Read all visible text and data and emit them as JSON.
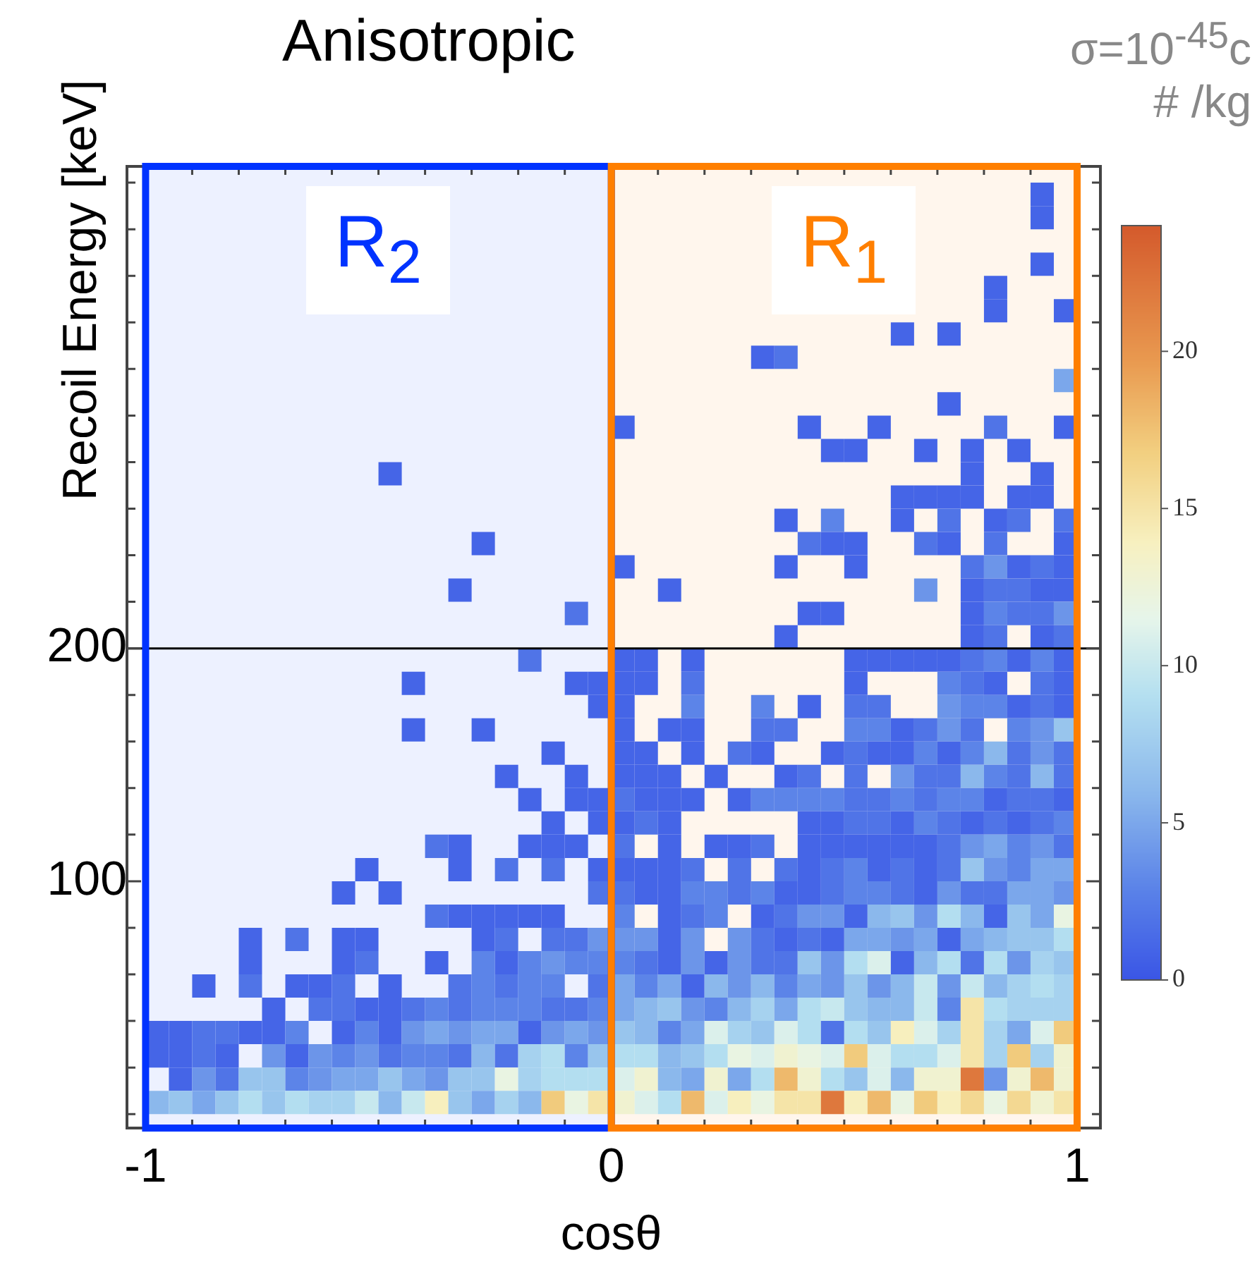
{
  "chart_data": {
    "type": "heatmap",
    "title": "Anisotropic",
    "xlabel": "cosθ",
    "ylabel": "Recoil Energy [keV]",
    "annotations": [
      "σ=10$^{-45}$c",
      "# /kg"
    ],
    "x": [
      -0.975,
      -0.925,
      -0.875,
      -0.825,
      -0.775,
      -0.725,
      -0.675,
      -0.625,
      -0.575,
      -0.525,
      -0.475,
      -0.425,
      -0.375,
      -0.325,
      -0.275,
      -0.225,
      -0.175,
      -0.125,
      -0.075,
      -0.025,
      0.025,
      0.075,
      0.125,
      0.175,
      0.225,
      0.275,
      0.325,
      0.375,
      0.425,
      0.475,
      0.525,
      0.575,
      0.625,
      0.675,
      0.725,
      0.775,
      0.825,
      0.875,
      0.925,
      0.975
    ],
    "y": [
      395,
      385,
      365,
      355,
      345,
      335,
      325,
      315,
      305,
      295,
      285,
      275,
      265,
      255,
      245,
      235,
      225,
      215,
      205,
      195,
      185,
      175,
      165,
      155,
      145,
      135,
      125,
      115,
      105,
      95,
      85,
      75,
      65,
      55,
      45,
      35,
      25,
      15,
      5
    ],
    "cells": [
      [
        null,
        null,
        null,
        null,
        null,
        null,
        null,
        null,
        null,
        null,
        null,
        null,
        null,
        null,
        null,
        null,
        null,
        null,
        null,
        null,
        null,
        null,
        null,
        null,
        null,
        null,
        null,
        null,
        null,
        null,
        null,
        null,
        null,
        null,
        null,
        null,
        null,
        null,
        1,
        null
      ],
      [
        null,
        null,
        null,
        null,
        null,
        null,
        null,
        null,
        null,
        null,
        null,
        null,
        null,
        null,
        null,
        null,
        null,
        null,
        null,
        null,
        null,
        null,
        null,
        null,
        null,
        null,
        null,
        null,
        null,
        null,
        null,
        null,
        null,
        null,
        null,
        null,
        null,
        null,
        1,
        null
      ],
      [
        null,
        null,
        null,
        null,
        null,
        null,
        null,
        null,
        null,
        null,
        null,
        null,
        null,
        null,
        null,
        null,
        null,
        null,
        null,
        null,
        null,
        null,
        null,
        null,
        null,
        null,
        null,
        null,
        null,
        null,
        null,
        null,
        null,
        null,
        null,
        null,
        null,
        null,
        1,
        null
      ],
      [
        null,
        null,
        null,
        null,
        null,
        null,
        null,
        null,
        null,
        null,
        null,
        null,
        null,
        null,
        null,
        null,
        null,
        null,
        null,
        null,
        null,
        null,
        null,
        null,
        null,
        null,
        null,
        null,
        null,
        null,
        null,
        null,
        null,
        null,
        null,
        null,
        1,
        null,
        null,
        null
      ],
      [
        null,
        null,
        null,
        null,
        null,
        null,
        null,
        null,
        null,
        null,
        null,
        null,
        null,
        null,
        null,
        null,
        null,
        null,
        null,
        null,
        null,
        null,
        null,
        null,
        null,
        null,
        null,
        null,
        null,
        null,
        null,
        null,
        null,
        null,
        null,
        null,
        1,
        null,
        null,
        1
      ],
      [
        null,
        null,
        null,
        null,
        null,
        null,
        null,
        null,
        null,
        null,
        null,
        null,
        null,
        null,
        null,
        null,
        null,
        null,
        null,
        null,
        null,
        null,
        null,
        null,
        null,
        null,
        null,
        null,
        null,
        null,
        null,
        null,
        1,
        null,
        1,
        null,
        null,
        null,
        null,
        null
      ],
      [
        null,
        null,
        null,
        null,
        null,
        null,
        null,
        null,
        null,
        null,
        null,
        null,
        null,
        null,
        null,
        null,
        null,
        null,
        null,
        null,
        null,
        null,
        null,
        null,
        null,
        null,
        1,
        2,
        null,
        null,
        null,
        null,
        null,
        null,
        null,
        null,
        null,
        null,
        null,
        null
      ],
      [
        null,
        null,
        null,
        null,
        null,
        null,
        null,
        null,
        null,
        null,
        null,
        null,
        null,
        null,
        null,
        null,
        null,
        null,
        null,
        null,
        null,
        null,
        null,
        null,
        null,
        null,
        null,
        null,
        null,
        null,
        null,
        null,
        null,
        null,
        null,
        null,
        null,
        null,
        null,
        5
      ],
      [
        null,
        null,
        null,
        null,
        null,
        null,
        null,
        null,
        null,
        null,
        null,
        null,
        null,
        null,
        null,
        null,
        null,
        null,
        null,
        null,
        null,
        null,
        null,
        null,
        null,
        null,
        null,
        null,
        null,
        null,
        null,
        null,
        null,
        null,
        1,
        null,
        null,
        null,
        null,
        null
      ],
      [
        null,
        null,
        null,
        null,
        null,
        null,
        null,
        null,
        null,
        null,
        null,
        null,
        null,
        null,
        null,
        null,
        null,
        null,
        null,
        null,
        1,
        null,
        null,
        null,
        null,
        null,
        null,
        null,
        1,
        null,
        null,
        1,
        null,
        null,
        null,
        null,
        2,
        null,
        null,
        1
      ],
      [
        null,
        null,
        null,
        null,
        null,
        null,
        null,
        null,
        null,
        null,
        null,
        null,
        null,
        null,
        null,
        null,
        null,
        null,
        null,
        null,
        null,
        null,
        null,
        null,
        null,
        null,
        null,
        null,
        null,
        1,
        1,
        null,
        null,
        1,
        null,
        1,
        null,
        1,
        null,
        null
      ],
      [
        null,
        null,
        null,
        null,
        null,
        null,
        null,
        null,
        null,
        null,
        1,
        null,
        null,
        null,
        null,
        null,
        null,
        null,
        null,
        null,
        null,
        null,
        null,
        null,
        null,
        null,
        null,
        null,
        null,
        null,
        null,
        null,
        null,
        null,
        null,
        1,
        null,
        null,
        1,
        null
      ],
      [
        null,
        null,
        null,
        null,
        null,
        null,
        null,
        null,
        null,
        null,
        null,
        null,
        null,
        null,
        null,
        null,
        null,
        null,
        null,
        null,
        null,
        null,
        null,
        null,
        null,
        null,
        null,
        null,
        null,
        null,
        null,
        null,
        1,
        1,
        1,
        1,
        null,
        1,
        1,
        null
      ],
      [
        null,
        null,
        null,
        null,
        null,
        null,
        null,
        null,
        null,
        null,
        null,
        null,
        null,
        null,
        null,
        null,
        null,
        null,
        null,
        null,
        null,
        null,
        null,
        null,
        null,
        null,
        null,
        1,
        null,
        3,
        null,
        null,
        1,
        null,
        2,
        null,
        1,
        2,
        null,
        2
      ],
      [
        null,
        null,
        null,
        null,
        null,
        null,
        null,
        null,
        null,
        null,
        null,
        null,
        null,
        null,
        1,
        null,
        null,
        null,
        null,
        null,
        null,
        null,
        null,
        null,
        null,
        null,
        null,
        null,
        2,
        1,
        1,
        null,
        null,
        2,
        1,
        null,
        2,
        null,
        null,
        1
      ],
      [
        null,
        null,
        null,
        null,
        null,
        null,
        null,
        null,
        null,
        null,
        null,
        null,
        null,
        null,
        null,
        null,
        null,
        null,
        null,
        null,
        1,
        null,
        null,
        null,
        null,
        null,
        null,
        1,
        null,
        null,
        1,
        null,
        null,
        null,
        null,
        2,
        4,
        1,
        2,
        1
      ],
      [
        null,
        null,
        null,
        null,
        null,
        null,
        null,
        null,
        null,
        null,
        null,
        null,
        null,
        1,
        null,
        null,
        null,
        null,
        null,
        null,
        null,
        null,
        1,
        null,
        null,
        null,
        null,
        null,
        null,
        null,
        null,
        null,
        null,
        4,
        null,
        1,
        2,
        2,
        1,
        1
      ],
      [
        null,
        null,
        null,
        null,
        null,
        null,
        null,
        null,
        null,
        null,
        null,
        null,
        null,
        null,
        null,
        null,
        null,
        null,
        2,
        null,
        null,
        null,
        null,
        null,
        null,
        null,
        null,
        null,
        1,
        1,
        null,
        null,
        null,
        null,
        null,
        1,
        3,
        2,
        2,
        4
      ],
      [
        null,
        null,
        null,
        null,
        null,
        null,
        null,
        null,
        null,
        null,
        null,
        null,
        null,
        null,
        null,
        null,
        null,
        null,
        null,
        null,
        null,
        null,
        null,
        null,
        null,
        null,
        null,
        1,
        null,
        null,
        null,
        null,
        null,
        null,
        null,
        1,
        2,
        null,
        1,
        2
      ],
      [
        null,
        null,
        null,
        null,
        null,
        null,
        null,
        null,
        null,
        null,
        null,
        null,
        null,
        null,
        null,
        null,
        2,
        null,
        null,
        null,
        1,
        1,
        null,
        1,
        null,
        null,
        null,
        null,
        null,
        null,
        1,
        1,
        1,
        1,
        1,
        2,
        3,
        1,
        3,
        1
      ],
      [
        null,
        null,
        null,
        null,
        null,
        null,
        null,
        null,
        null,
        null,
        null,
        1,
        null,
        null,
        null,
        null,
        null,
        null,
        1,
        1,
        1,
        1,
        null,
        2,
        null,
        null,
        null,
        null,
        null,
        null,
        1,
        null,
        null,
        null,
        3,
        2,
        1,
        null,
        2,
        1
      ],
      [
        null,
        null,
        null,
        null,
        null,
        null,
        null,
        null,
        null,
        null,
        null,
        null,
        null,
        null,
        null,
        null,
        null,
        null,
        null,
        1,
        1,
        null,
        null,
        3,
        null,
        null,
        3,
        null,
        1,
        null,
        2,
        2,
        null,
        null,
        4,
        3,
        3,
        1,
        2,
        1
      ],
      [
        null,
        null,
        null,
        null,
        null,
        null,
        null,
        null,
        null,
        null,
        null,
        1,
        null,
        null,
        1,
        null,
        null,
        null,
        null,
        null,
        1,
        null,
        1,
        1,
        null,
        null,
        2,
        2,
        null,
        null,
        3,
        3,
        1,
        2,
        4,
        2,
        null,
        3,
        4,
        7
      ],
      [
        null,
        null,
        null,
        null,
        null,
        null,
        null,
        null,
        null,
        null,
        null,
        null,
        null,
        null,
        null,
        null,
        null,
        1,
        null,
        null,
        1,
        1,
        null,
        1,
        null,
        2,
        1,
        null,
        null,
        1,
        2,
        1,
        1,
        3,
        1,
        3,
        6,
        2,
        4,
        2
      ],
      [
        null,
        null,
        null,
        null,
        null,
        null,
        null,
        null,
        null,
        null,
        null,
        null,
        null,
        null,
        null,
        1,
        null,
        null,
        1,
        null,
        1,
        1,
        1,
        null,
        1,
        null,
        null,
        1,
        2,
        null,
        2,
        null,
        4,
        2,
        2,
        6,
        3,
        2,
        6,
        2
      ],
      [
        null,
        null,
        null,
        null,
        null,
        null,
        null,
        null,
        null,
        null,
        null,
        null,
        null,
        null,
        null,
        null,
        1,
        null,
        1,
        1,
        2,
        1,
        1,
        1,
        null,
        1,
        3,
        3,
        3,
        3,
        2,
        2,
        3,
        2,
        3,
        3,
        1,
        2,
        2,
        1
      ],
      [
        null,
        null,
        null,
        null,
        null,
        null,
        null,
        null,
        null,
        null,
        null,
        null,
        null,
        null,
        null,
        null,
        null,
        1,
        null,
        1,
        1,
        2,
        1,
        null,
        null,
        null,
        null,
        null,
        1,
        1,
        2,
        2,
        1,
        3,
        2,
        1,
        2,
        1,
        2,
        3
      ],
      [
        null,
        null,
        null,
        null,
        null,
        null,
        null,
        null,
        null,
        null,
        null,
        null,
        2,
        1,
        null,
        null,
        1,
        1,
        1,
        null,
        2,
        null,
        1,
        null,
        1,
        1,
        2,
        null,
        1,
        1,
        1,
        1,
        1,
        1,
        2,
        4,
        5,
        3,
        4,
        2
      ],
      [
        null,
        null,
        null,
        null,
        null,
        null,
        null,
        null,
        null,
        1,
        null,
        null,
        null,
        1,
        null,
        2,
        null,
        2,
        null,
        1,
        1,
        1,
        1,
        2,
        null,
        2,
        null,
        2,
        1,
        2,
        3,
        1,
        2,
        1,
        2,
        7,
        4,
        3,
        5,
        5
      ],
      [
        null,
        null,
        null,
        null,
        null,
        null,
        null,
        null,
        1,
        null,
        1,
        null,
        null,
        null,
        null,
        null,
        null,
        null,
        null,
        2,
        2,
        1,
        1,
        3,
        3,
        2,
        3,
        1,
        1,
        2,
        3,
        3,
        2,
        1,
        4,
        2,
        2,
        5,
        5,
        4
      ],
      [
        null,
        null,
        null,
        null,
        null,
        null,
        null,
        null,
        null,
        null,
        null,
        null,
        2,
        1,
        1,
        1,
        1,
        1,
        null,
        null,
        3,
        null,
        1,
        2,
        3,
        null,
        1,
        2,
        4,
        4,
        1,
        6,
        7,
        4,
        9,
        6,
        1,
        7,
        5,
        12
      ],
      [
        null,
        null,
        null,
        null,
        1,
        null,
        2,
        null,
        1,
        1,
        null,
        null,
        null,
        null,
        1,
        2,
        null,
        2,
        2,
        4,
        4,
        4,
        1,
        4,
        null,
        4,
        2,
        1,
        2,
        1,
        5,
        5,
        4,
        5,
        1,
        5,
        6,
        7,
        7,
        9
      ],
      [
        null,
        null,
        null,
        null,
        1,
        null,
        null,
        null,
        1,
        2,
        null,
        null,
        1,
        null,
        3,
        1,
        3,
        4,
        3,
        3,
        3,
        2,
        1,
        4,
        1,
        4,
        2,
        2,
        7,
        4,
        9,
        11,
        1,
        6,
        9,
        2,
        9,
        4,
        8,
        7
      ],
      [
        null,
        null,
        1,
        null,
        2,
        null,
        1,
        1,
        2,
        null,
        1,
        null,
        null,
        2,
        3,
        2,
        3,
        3,
        null,
        2,
        5,
        3,
        5,
        1,
        6,
        4,
        6,
        3,
        5,
        4,
        7,
        4,
        6,
        10,
        4,
        10,
        6,
        8,
        9,
        8
      ],
      [
        null,
        null,
        null,
        null,
        null,
        1,
        null,
        2,
        2,
        1,
        1,
        2,
        3,
        2,
        3,
        3,
        3,
        2,
        2,
        3,
        5,
        6,
        7,
        4,
        3,
        6,
        8,
        5,
        9,
        10,
        7,
        6,
        6,
        10,
        3,
        15,
        9,
        8,
        8,
        8
      ],
      [
        1,
        1,
        2,
        2,
        1,
        1,
        3,
        null,
        1,
        3,
        1,
        4,
        5,
        4,
        5,
        5,
        1,
        4,
        5,
        4,
        7,
        6,
        3,
        5,
        11,
        8,
        7,
        11,
        9,
        2,
        9,
        7,
        14,
        11,
        8,
        15,
        8,
        5,
        11,
        17
      ],
      [
        1,
        1,
        2,
        1,
        null,
        4,
        1,
        4,
        3,
        4,
        2,
        3,
        3,
        2,
        6,
        2,
        8,
        9,
        3,
        7,
        9,
        9,
        6,
        7,
        9,
        12,
        11,
        13,
        12,
        11,
        17,
        11,
        9,
        9,
        11,
        15,
        8,
        17,
        8,
        13
      ],
      [
        null,
        1,
        4,
        2,
        7,
        7,
        3,
        4,
        5,
        5,
        7,
        5,
        4,
        7,
        7,
        12,
        8,
        9,
        9,
        9,
        11,
        13,
        6,
        5,
        13,
        5,
        9,
        18,
        13,
        9,
        7,
        11,
        6,
        13,
        13,
        22,
        4,
        13,
        18,
        13
      ],
      [
        6,
        7,
        5,
        7,
        9,
        7,
        9,
        8,
        8,
        10,
        6,
        10,
        14,
        7,
        5,
        8,
        6,
        17,
        12,
        15,
        13,
        11,
        9,
        18,
        11,
        14,
        12,
        15,
        15,
        22,
        14,
        18,
        12,
        17,
        14,
        16,
        12,
        16,
        13,
        15
      ]
    ],
    "xlim": [
      -1.04,
      1.05
    ],
    "xticks": [
      -1,
      {
        "value": -0.9,
        "label": null
      },
      {
        "value": -0.8,
        "label": null
      },
      {
        "value": -0.7,
        "label": null
      },
      {
        "value": -0.6,
        "label": null
      },
      {
        "value": -0.5,
        "label": null
      },
      {
        "value": -0.4,
        "label": null
      },
      {
        "value": -0.3,
        "label": null
      },
      {
        "value": -0.2,
        "label": null
      },
      {
        "value": -0.1,
        "label": null
      },
      0,
      {
        "value": 0.1,
        "label": null
      },
      {
        "value": 0.2,
        "label": null
      },
      {
        "value": 0.3,
        "label": null
      },
      {
        "value": 0.4,
        "label": null
      },
      {
        "value": 0.5,
        "label": null
      },
      {
        "value": 0.6,
        "label": null
      },
      {
        "value": 0.7,
        "label": null
      },
      {
        "value": 0.8,
        "label": null
      },
      {
        "value": 0.9,
        "label": null
      },
      1
    ],
    "ylim": [
      -6,
      407
    ],
    "yticks": [
      {
        "value": 0,
        "label": null
      },
      {
        "value": 20,
        "label": null
      },
      {
        "value": 40,
        "label": null
      },
      {
        "value": 60,
        "label": null
      },
      {
        "value": 80,
        "label": null
      },
      100,
      {
        "value": 120,
        "label": null
      },
      {
        "value": 140,
        "label": null
      },
      {
        "value": 160,
        "label": null
      },
      {
        "value": 180,
        "label": null
      },
      200,
      {
        "value": 220,
        "label": null
      },
      {
        "value": 240,
        "label": null
      },
      {
        "value": 260,
        "label": null
      },
      {
        "value": 280,
        "label": null
      },
      {
        "value": 300,
        "label": null
      },
      {
        "value": 320,
        "label": null
      },
      {
        "value": 340,
        "label": null
      },
      {
        "value": 360,
        "label": null
      },
      {
        "value": 380,
        "label": null
      },
      {
        "value": 400,
        "label": null
      }
    ],
    "clim": [
      0,
      24
    ],
    "cticks": [
      0,
      5,
      10,
      15,
      20
    ],
    "ref_lines": [
      {
        "axis": "y",
        "value": 200,
        "color": "#000000"
      }
    ],
    "bands": [
      {
        "axis": "x",
        "from": -1,
        "to": 0,
        "label": "R$_{2}$",
        "color": "#0033ff"
      },
      {
        "axis": "x",
        "from": 0,
        "to": 1,
        "label": "R$_{1}$",
        "color": "#ff7f00"
      }
    ]
  }
}
